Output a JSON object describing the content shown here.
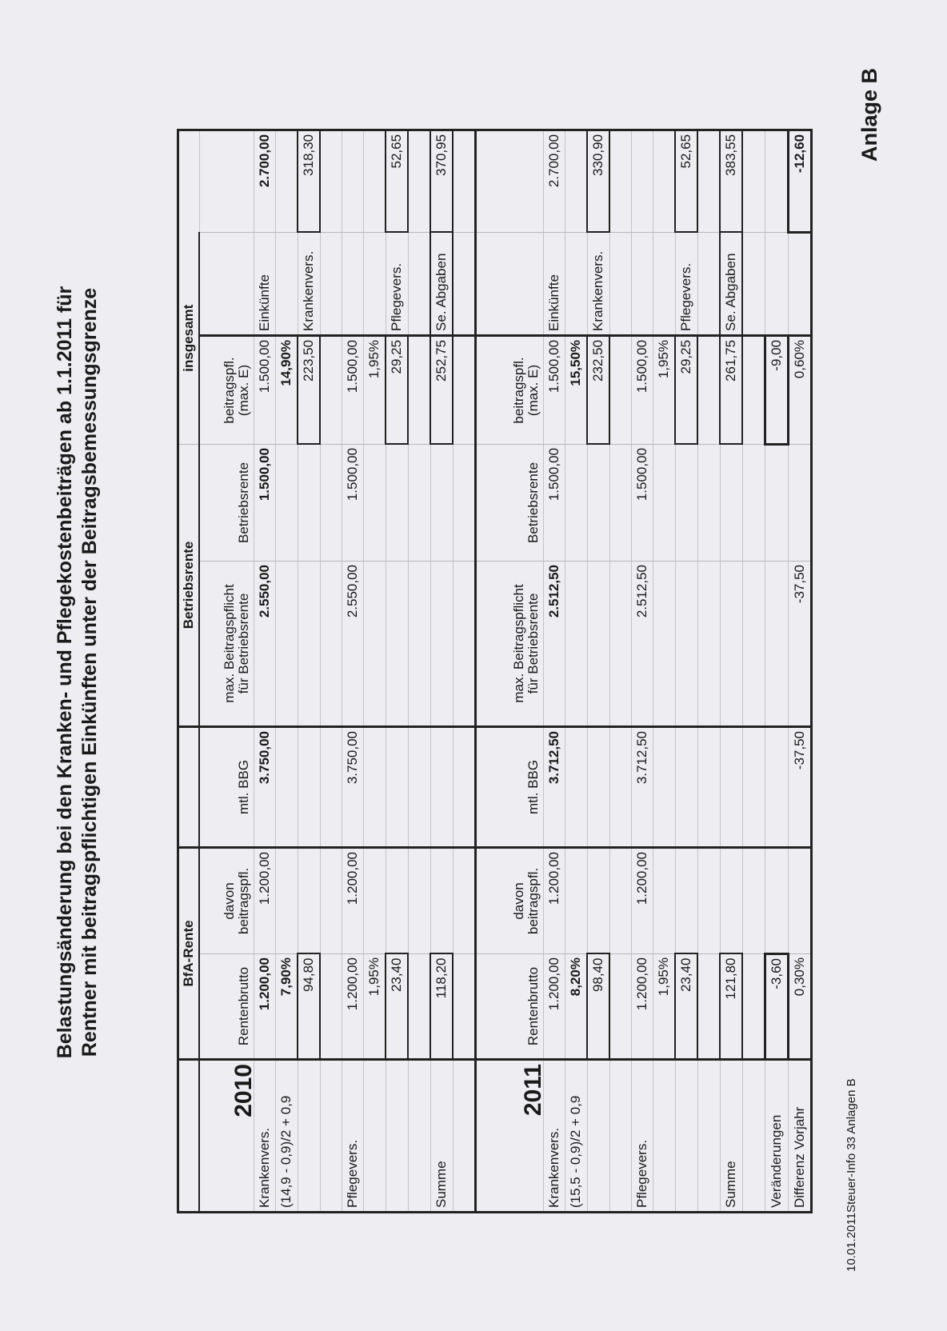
{
  "title": {
    "line1": "Belastungsänderung bei den Kranken- und Pflegekostenbeiträgen ab 1.1.2011 für",
    "line2": "Rentner mit beitragspflichtigen Einkünften unter der Beitragsbemessungsgrenze"
  },
  "attachment_label": "Anlage B",
  "footer": "10.01.2011Steuer-Info 33 Anlagen B",
  "table": {
    "groups": [
      "",
      "BfA-Rente",
      "",
      "Betriebsrente",
      "insgesamt"
    ],
    "sections": [
      {
        "year": "2010",
        "headers": [
          "Rentenbrutto",
          "davon\nbeitragspfl.",
          "mtl. BBG",
          "max. Beitragspflicht\nfür Betriebsrente",
          "Betriebsrente",
          "beitragspfl.\n(max. E)",
          "",
          ""
        ],
        "rows": [
          {
            "cells": [
              "Krankenvers.",
              "1.200,00",
              "1.200,00",
              "3.750,00",
              "2.550,00",
              "1.500,00",
              "1.500,00",
              "Einkünfte",
              "2.700,00"
            ],
            "bold": [
              1,
              3,
              4,
              5,
              8
            ],
            "boxed": []
          },
          {
            "cells": [
              "(14,9 - 0,9)/2 + 0,9",
              "7,90%",
              "",
              "",
              "",
              "",
              "14,90%",
              "",
              ""
            ],
            "bold": [
              1,
              6
            ],
            "boxed": []
          },
          {
            "cells": [
              "",
              "94,80",
              "",
              "",
              "",
              "",
              "223,50",
              "Krankenvers.",
              "318,30"
            ],
            "bold": [],
            "boxed": [
              1,
              6,
              8
            ]
          },
          {
            "cells": [
              "",
              "",
              "",
              "",
              "",
              "",
              "",
              "",
              ""
            ],
            "bold": [],
            "boxed": []
          },
          {
            "cells": [
              "Pflegevers.",
              "1.200,00",
              "1.200,00",
              "3.750,00",
              "2.550,00",
              "1.500,00",
              "1.500,00",
              "",
              ""
            ],
            "bold": [],
            "boxed": []
          },
          {
            "cells": [
              "",
              "1,95%",
              "",
              "",
              "",
              "",
              "1,95%",
              "",
              ""
            ],
            "bold": [],
            "boxed": []
          },
          {
            "cells": [
              "",
              "23,40",
              "",
              "",
              "",
              "",
              "29,25",
              "Pflegevers.",
              "52,65"
            ],
            "bold": [],
            "boxed": [
              1,
              6,
              8
            ]
          },
          {
            "cells": [
              "",
              "",
              "",
              "",
              "",
              "",
              "",
              "",
              ""
            ],
            "bold": [],
            "boxed": []
          },
          {
            "cells": [
              "Summe",
              "118,20",
              "",
              "",
              "",
              "",
              "252,75",
              "Se. Abgaben",
              "370,95"
            ],
            "bold": [],
            "boxed": [
              1,
              6,
              7,
              8
            ]
          },
          {
            "cells": [
              "",
              "",
              "",
              "",
              "",
              "",
              "",
              "",
              ""
            ],
            "bold": [],
            "boxed": []
          }
        ]
      },
      {
        "year": "2011",
        "headers": [
          "Rentenbrutto",
          "davon\nbeitragspfl.",
          "mtl. BBG",
          "max. Beitragspflicht\nfür Betriebsrente",
          "Betriebsrente",
          "beitragspfl.\n(max. E)",
          "",
          ""
        ],
        "rows": [
          {
            "cells": [
              "Krankenvers.",
              "1.200,00",
              "1.200,00",
              "3.712,50",
              "2.512,50",
              "1.500,00",
              "1.500,00",
              "Einkünfte",
              "2.700,00"
            ],
            "bold": [
              3,
              4
            ],
            "boxed": []
          },
          {
            "cells": [
              "(15,5 - 0,9)/2 + 0,9",
              "8,20%",
              "",
              "",
              "",
              "",
              "15,50%",
              "",
              ""
            ],
            "bold": [
              1,
              6
            ],
            "boxed": []
          },
          {
            "cells": [
              "",
              "98,40",
              "",
              "",
              "",
              "",
              "232,50",
              "Krankenvers.",
              "330,90"
            ],
            "bold": [],
            "boxed": [
              1,
              6,
              8
            ]
          },
          {
            "cells": [
              "",
              "",
              "",
              "",
              "",
              "",
              "",
              "",
              ""
            ],
            "bold": [],
            "boxed": []
          },
          {
            "cells": [
              "Pflegevers.",
              "1.200,00",
              "1.200,00",
              "3.712,50",
              "2.512,50",
              "1.500,00",
              "1.500,00",
              "",
              ""
            ],
            "bold": [],
            "boxed": []
          },
          {
            "cells": [
              "",
              "1,95%",
              "",
              "",
              "",
              "",
              "1,95%",
              "",
              ""
            ],
            "bold": [],
            "boxed": []
          },
          {
            "cells": [
              "",
              "23,40",
              "",
              "",
              "",
              "",
              "29,25",
              "Pflegevers.",
              "52,65"
            ],
            "bold": [],
            "boxed": [
              1,
              6,
              8
            ]
          },
          {
            "cells": [
              "",
              "",
              "",
              "",
              "",
              "",
              "",
              "",
              ""
            ],
            "bold": [],
            "boxed": []
          },
          {
            "cells": [
              "Summe",
              "121,80",
              "",
              "",
              "",
              "",
              "261,75",
              "Se. Abgaben",
              "383,55"
            ],
            "bold": [],
            "boxed": [
              1,
              6,
              7,
              8
            ]
          },
          {
            "cells": [
              "",
              "",
              "",
              "",
              "",
              "",
              "",
              "",
              ""
            ],
            "bold": [],
            "boxed": []
          },
          {
            "cells": [
              "Veränderungen",
              "-3,60",
              "",
              "",
              "",
              "",
              "-9,00",
              "",
              ""
            ],
            "bold": [],
            "boxed": [
              1,
              6
            ],
            "thick": true
          },
          {
            "cells": [
              "Differenz Vorjahr",
              "0,30%",
              "",
              "-37,50",
              "-37,50",
              "",
              "0,60%",
              "",
              "-12,60"
            ],
            "bold": [
              8
            ],
            "boxed": [
              8
            ],
            "thick": true
          }
        ]
      }
    ]
  }
}
